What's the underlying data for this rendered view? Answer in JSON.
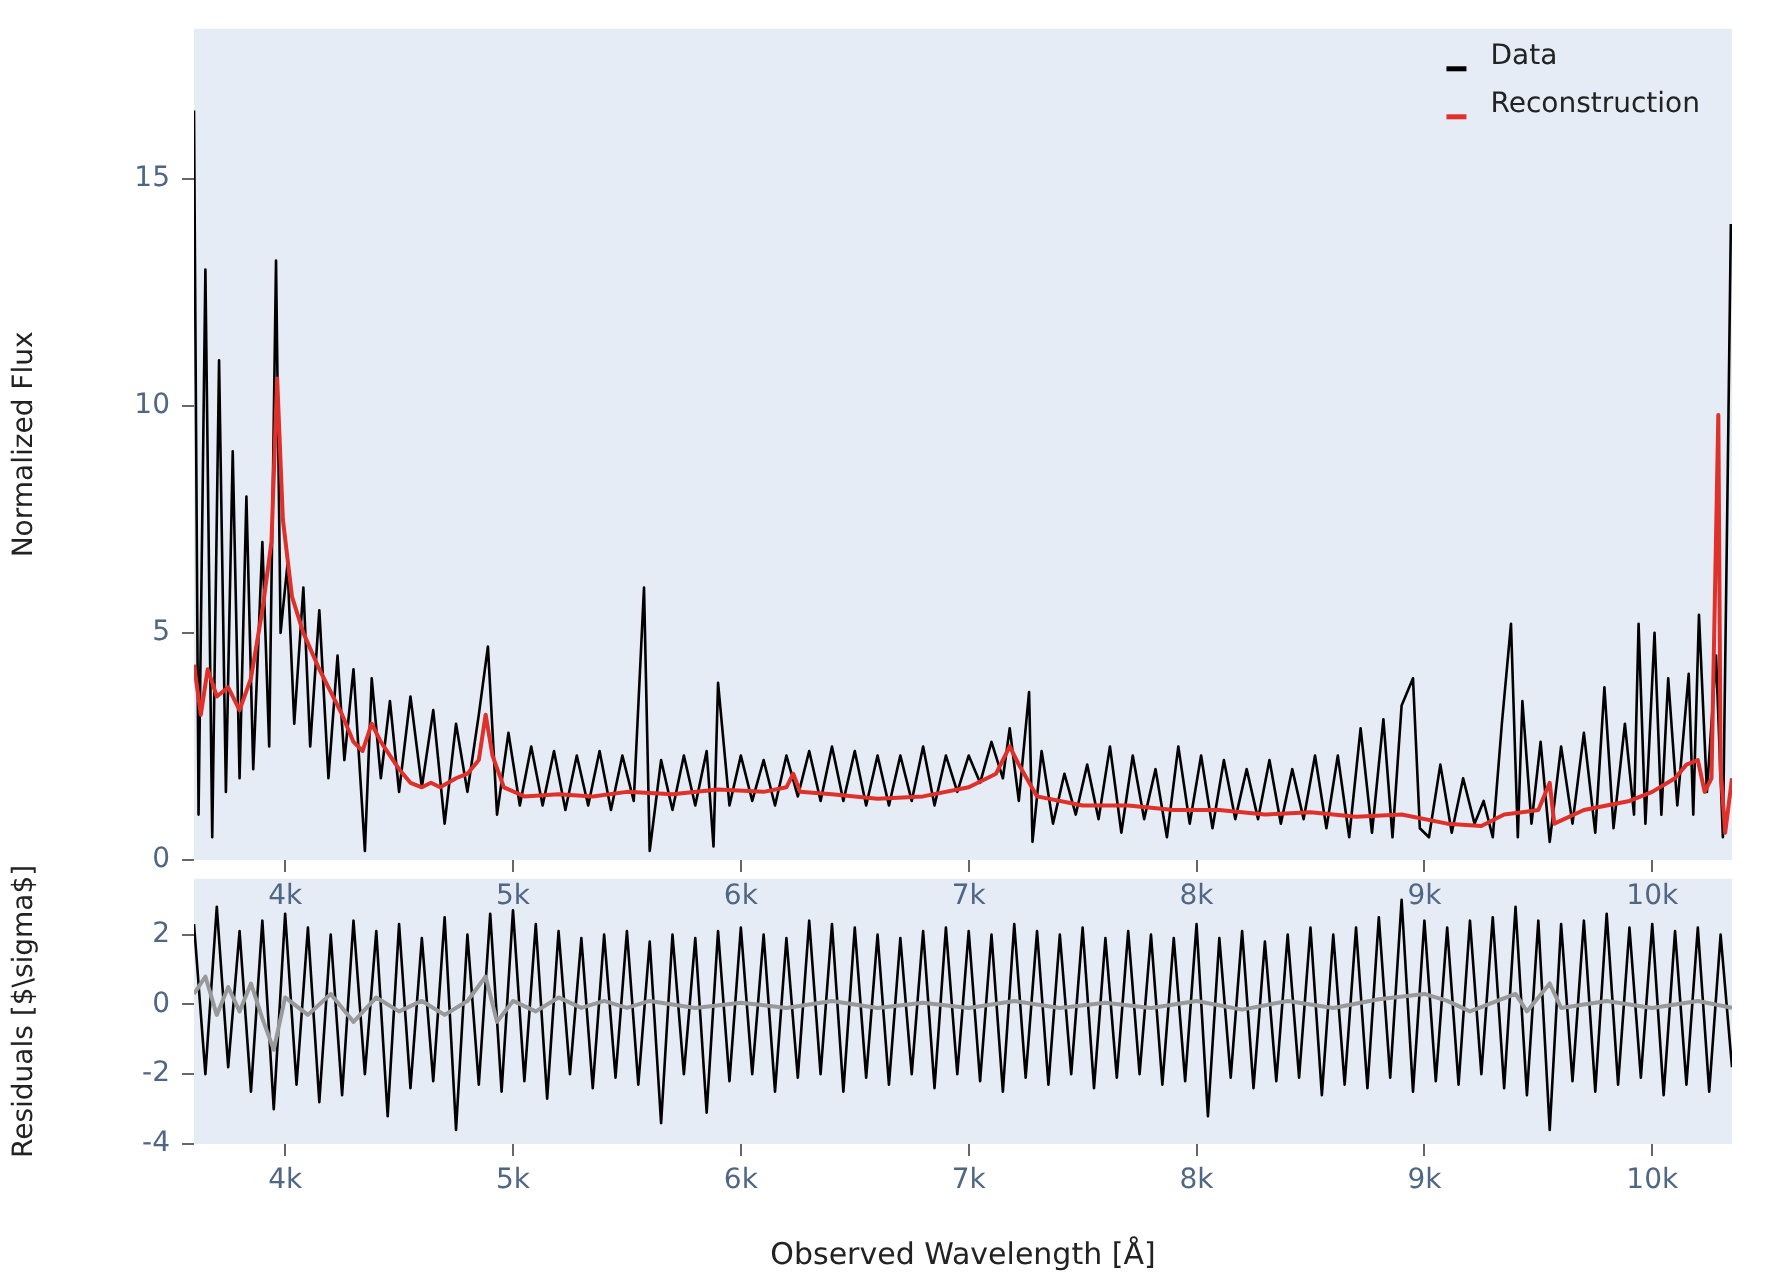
{
  "chart_data": [
    {
      "type": "line",
      "ylabel": "Normalized Flux",
      "xlim": [
        3600,
        10350
      ],
      "xticks": [
        {
          "value": 4000,
          "label": "4k"
        },
        {
          "value": 5000,
          "label": "5k"
        },
        {
          "value": 6000,
          "label": "6k"
        },
        {
          "value": 7000,
          "label": "7k"
        },
        {
          "value": 8000,
          "label": "8k"
        },
        {
          "value": 9000,
          "label": "9k"
        },
        {
          "value": 10000,
          "label": "10k"
        }
      ],
      "ylim": [
        0,
        18.3
      ],
      "yticks": [
        0,
        5,
        10,
        15
      ],
      "legend": "top right",
      "marker": "none",
      "series": [
        {
          "name": "Data",
          "color": "#000000",
          "x": [
            3600,
            3620,
            3650,
            3680,
            3710,
            3740,
            3770,
            3800,
            3830,
            3860,
            3900,
            3930,
            3960,
            3980,
            4010,
            4040,
            4080,
            4110,
            4150,
            4190,
            4230,
            4260,
            4300,
            4350,
            4380,
            4420,
            4460,
            4500,
            4550,
            4600,
            4650,
            4700,
            4750,
            4800,
            4850,
            4890,
            4930,
            4980,
            5030,
            5080,
            5130,
            5180,
            5230,
            5280,
            5330,
            5380,
            5430,
            5480,
            5530,
            5575,
            5600,
            5650,
            5700,
            5750,
            5800,
            5850,
            5880,
            5900,
            5950,
            6000,
            6050,
            6100,
            6150,
            6200,
            6250,
            6300,
            6350,
            6400,
            6450,
            6500,
            6550,
            6600,
            6650,
            6700,
            6750,
            6800,
            6850,
            6900,
            6950,
            7000,
            7050,
            7100,
            7150,
            7180,
            7220,
            7265,
            7280,
            7320,
            7370,
            7420,
            7470,
            7520,
            7570,
            7620,
            7670,
            7720,
            7770,
            7820,
            7870,
            7920,
            7970,
            8020,
            8070,
            8120,
            8170,
            8220,
            8270,
            8320,
            8370,
            8420,
            8470,
            8520,
            8570,
            8620,
            8670,
            8720,
            8770,
            8820,
            8860,
            8900,
            8950,
            8980,
            9020,
            9070,
            9120,
            9170,
            9220,
            9260,
            9300,
            9340,
            9380,
            9410,
            9430,
            9470,
            9510,
            9550,
            9600,
            9650,
            9700,
            9750,
            9790,
            9830,
            9880,
            9920,
            9940,
            9970,
            10010,
            10040,
            10070,
            10110,
            10160,
            10180,
            10205,
            10240,
            10280,
            10310,
            10330,
            10345
          ],
          "values": [
            16.5,
            1,
            13,
            0.5,
            11,
            1.5,
            9,
            1.8,
            8,
            2,
            7,
            2.5,
            13.2,
            5,
            6.5,
            3,
            6,
            2.5,
            5.5,
            1.8,
            4.5,
            2.2,
            4.2,
            0.2,
            4,
            1.8,
            3.5,
            1.5,
            3.6,
            1.6,
            3.3,
            0.8,
            3,
            1.5,
            3.2,
            4.7,
            1,
            2.8,
            1.2,
            2.5,
            1.2,
            2.4,
            1.1,
            2.3,
            1.2,
            2.4,
            1.1,
            2.3,
            1.3,
            6,
            0.2,
            2.2,
            1.1,
            2.3,
            1.2,
            2.4,
            0.3,
            3.9,
            1.2,
            2.3,
            1.3,
            2.2,
            1.2,
            2.3,
            1.4,
            2.4,
            1.3,
            2.5,
            1.3,
            2.4,
            1.2,
            2.3,
            1.2,
            2.3,
            1.3,
            2.5,
            1.2,
            2.3,
            1.5,
            2.3,
            1.7,
            2.6,
            1.8,
            2.9,
            1.3,
            3.7,
            0.4,
            2.4,
            0.8,
            1.9,
            1,
            2.1,
            0.9,
            2.5,
            0.6,
            2.3,
            0.9,
            2,
            0.5,
            2.5,
            0.8,
            2.3,
            0.7,
            2.2,
            0.9,
            2,
            0.9,
            2.2,
            0.8,
            2,
            0.9,
            2.3,
            0.7,
            2.3,
            0.5,
            2.9,
            0.6,
            3.1,
            0.5,
            3.4,
            4,
            0.7,
            0.5,
            2.1,
            0.6,
            1.8,
            0.8,
            1.3,
            0.5,
            3,
            5.2,
            0.5,
            3.5,
            0.8,
            2.6,
            0.4,
            2.5,
            0.8,
            2.8,
            0.6,
            3.8,
            0.7,
            3,
            1,
            5.2,
            0.8,
            5,
            1,
            4,
            1.2,
            4.1,
            1,
            5.4,
            1.5,
            4.5,
            0.5,
            8,
            14
          ]
        },
        {
          "name": "Reconstruction",
          "color": "#e0302a",
          "x": [
            3600,
            3630,
            3660,
            3700,
            3750,
            3800,
            3850,
            3900,
            3940,
            3965,
            3990,
            4030,
            4080,
            4150,
            4200,
            4250,
            4300,
            4340,
            4380,
            4420,
            4500,
            4550,
            4600,
            4640,
            4680,
            4750,
            4800,
            4850,
            4880,
            4910,
            4960,
            5050,
            5200,
            5350,
            5500,
            5700,
            5900,
            6100,
            6200,
            6230,
            6260,
            6400,
            6600,
            6800,
            7000,
            7120,
            7180,
            7220,
            7300,
            7500,
            7700,
            7900,
            8100,
            8300,
            8500,
            8700,
            8900,
            9100,
            9250,
            9350,
            9500,
            9550,
            9570,
            9700,
            9900,
            10000,
            10100,
            10150,
            10200,
            10230,
            10260,
            10290,
            10300,
            10320,
            10350
          ],
          "values": [
            4.3,
            3.2,
            4.2,
            3.6,
            3.8,
            3.3,
            4,
            5.5,
            7,
            10.6,
            7.5,
            5.8,
            5,
            4.2,
            3.7,
            3.2,
            2.6,
            2.4,
            3,
            2.6,
            2,
            1.7,
            1.6,
            1.7,
            1.6,
            1.8,
            1.9,
            2.2,
            3.2,
            2.3,
            1.6,
            1.4,
            1.45,
            1.4,
            1.5,
            1.45,
            1.55,
            1.5,
            1.6,
            1.9,
            1.5,
            1.45,
            1.35,
            1.4,
            1.6,
            1.9,
            2.5,
            2.1,
            1.4,
            1.2,
            1.2,
            1.1,
            1.1,
            1,
            1.05,
            0.95,
            1,
            0.8,
            0.75,
            1,
            1.1,
            1.7,
            0.8,
            1.1,
            1.3,
            1.5,
            1.8,
            2.1,
            2.2,
            1.5,
            1.8,
            9.8,
            2,
            0.6,
            1.8
          ]
        }
      ]
    },
    {
      "type": "line",
      "xlabel": "Observed Wavelength [Å]",
      "ylabel": "Residuals [$\\sigma$]",
      "xlim": [
        3600,
        10350
      ],
      "xticks": [
        {
          "value": 4000,
          "label": "4k"
        },
        {
          "value": 5000,
          "label": "5k"
        },
        {
          "value": 6000,
          "label": "6k"
        },
        {
          "value": 7000,
          "label": "7k"
        },
        {
          "value": 8000,
          "label": "8k"
        },
        {
          "value": 9000,
          "label": "9k"
        },
        {
          "value": 10000,
          "label": "10k"
        }
      ],
      "ylim": [
        -4,
        3.6
      ],
      "yticks": [
        -4,
        -2,
        0,
        2
      ],
      "marker": "none",
      "series": [
        {
          "color": "#000000",
          "x": [
            3600,
            3650,
            3700,
            3750,
            3800,
            3850,
            3900,
            3950,
            4000,
            4050,
            4100,
            4150,
            4200,
            4250,
            4300,
            4350,
            4400,
            4450,
            4500,
            4550,
            4600,
            4650,
            4700,
            4750,
            4800,
            4850,
            4900,
            4950,
            5000,
            5050,
            5100,
            5150,
            5200,
            5250,
            5300,
            5350,
            5400,
            5450,
            5500,
            5550,
            5600,
            5650,
            5700,
            5750,
            5800,
            5850,
            5900,
            5950,
            6000,
            6050,
            6100,
            6150,
            6200,
            6250,
            6300,
            6350,
            6400,
            6450,
            6500,
            6550,
            6600,
            6650,
            6700,
            6750,
            6800,
            6850,
            6900,
            6950,
            7000,
            7050,
            7100,
            7150,
            7200,
            7250,
            7300,
            7350,
            7400,
            7450,
            7500,
            7550,
            7600,
            7650,
            7700,
            7750,
            7800,
            7850,
            7900,
            7950,
            8000,
            8050,
            8100,
            8150,
            8200,
            8250,
            8300,
            8350,
            8400,
            8450,
            8500,
            8550,
            8600,
            8650,
            8700,
            8750,
            8800,
            8850,
            8900,
            8950,
            9000,
            9050,
            9100,
            9150,
            9200,
            9250,
            9300,
            9350,
            9400,
            9450,
            9500,
            9550,
            9600,
            9650,
            9700,
            9750,
            9800,
            9850,
            9900,
            9950,
            10000,
            10050,
            10100,
            10150,
            10200,
            10250,
            10300,
            10350
          ],
          "values": [
            2.3,
            -2,
            2.8,
            -1.8,
            2.1,
            -2.5,
            2.4,
            -3,
            2.6,
            -2.3,
            2.2,
            -2.8,
            2,
            -2.6,
            2.4,
            -2,
            2.1,
            -3.2,
            2.3,
            -2.4,
            1.9,
            -2.2,
            2.5,
            -3.6,
            2,
            -2.3,
            2.6,
            -2.5,
            2.7,
            -2.2,
            2.3,
            -2.7,
            2.1,
            -2,
            1.9,
            -2.4,
            2,
            -2.1,
            2.1,
            -2.3,
            1.8,
            -3.4,
            2,
            -2,
            1.9,
            -3.1,
            2.1,
            -2.2,
            2.2,
            -2,
            2,
            -2.5,
            1.9,
            -2.1,
            2.4,
            -2,
            2.3,
            -2.5,
            2.2,
            -2.1,
            2,
            -2.3,
            1.9,
            -2,
            2.1,
            -2.4,
            2.2,
            -2,
            2.1,
            -2.2,
            2,
            -2.5,
            2.3,
            -2.1,
            2.1,
            -2.3,
            2,
            -2,
            2.2,
            -2.4,
            1.9,
            -2.1,
            2.1,
            -2,
            2,
            -2.3,
            1.9,
            -2.2,
            2.3,
            -3.2,
            1.9,
            -2.1,
            2.1,
            -2.4,
            1.8,
            -2.2,
            2,
            -2.1,
            2.2,
            -2.6,
            2,
            -2.3,
            2.2,
            -2.4,
            2.5,
            -2.1,
            3,
            -2.5,
            2.4,
            -2.2,
            2.2,
            -2.3,
            2.4,
            -2,
            2.5,
            -2.4,
            2.8,
            -2.6,
            2.4,
            -3.6,
            2.3,
            -2.2,
            2.4,
            -2.5,
            2.6,
            -2.3,
            2.2,
            -2.1,
            2.3,
            -2.6,
            2.1,
            -2.3,
            2.2,
            -2.5,
            2,
            -1.8
          ]
        },
        {
          "color": "#999999",
          "x": [
            3600,
            3650,
            3700,
            3750,
            3800,
            3850,
            3900,
            3950,
            4000,
            4100,
            4200,
            4300,
            4400,
            4500,
            4600,
            4700,
            4800,
            4880,
            4930,
            5000,
            5100,
            5200,
            5300,
            5400,
            5500,
            5600,
            5800,
            6000,
            6200,
            6400,
            6600,
            6800,
            7000,
            7200,
            7400,
            7600,
            7800,
            8000,
            8200,
            8400,
            8600,
            8800,
            9000,
            9100,
            9200,
            9400,
            9450,
            9550,
            9600,
            9800,
            10000,
            10200,
            10350
          ],
          "values": [
            0.3,
            0.8,
            -0.3,
            0.5,
            -0.2,
            0.6,
            -0.4,
            -1.3,
            0.2,
            -0.3,
            0.3,
            -0.5,
            0.2,
            -0.2,
            0.1,
            -0.3,
            0.1,
            0.8,
            -0.5,
            0.1,
            -0.2,
            0.2,
            -0.1,
            0.1,
            -0.1,
            0.1,
            -0.1,
            0.05,
            -0.1,
            0.1,
            -0.1,
            0.05,
            -0.1,
            0.1,
            -0.1,
            0.05,
            -0.1,
            0.1,
            -0.15,
            0.1,
            -0.1,
            0.15,
            0.3,
            0.1,
            -0.2,
            0.3,
            -0.2,
            0.6,
            -0.1,
            0.1,
            -0.1,
            0.1,
            -0.1
          ]
        }
      ]
    }
  ]
}
